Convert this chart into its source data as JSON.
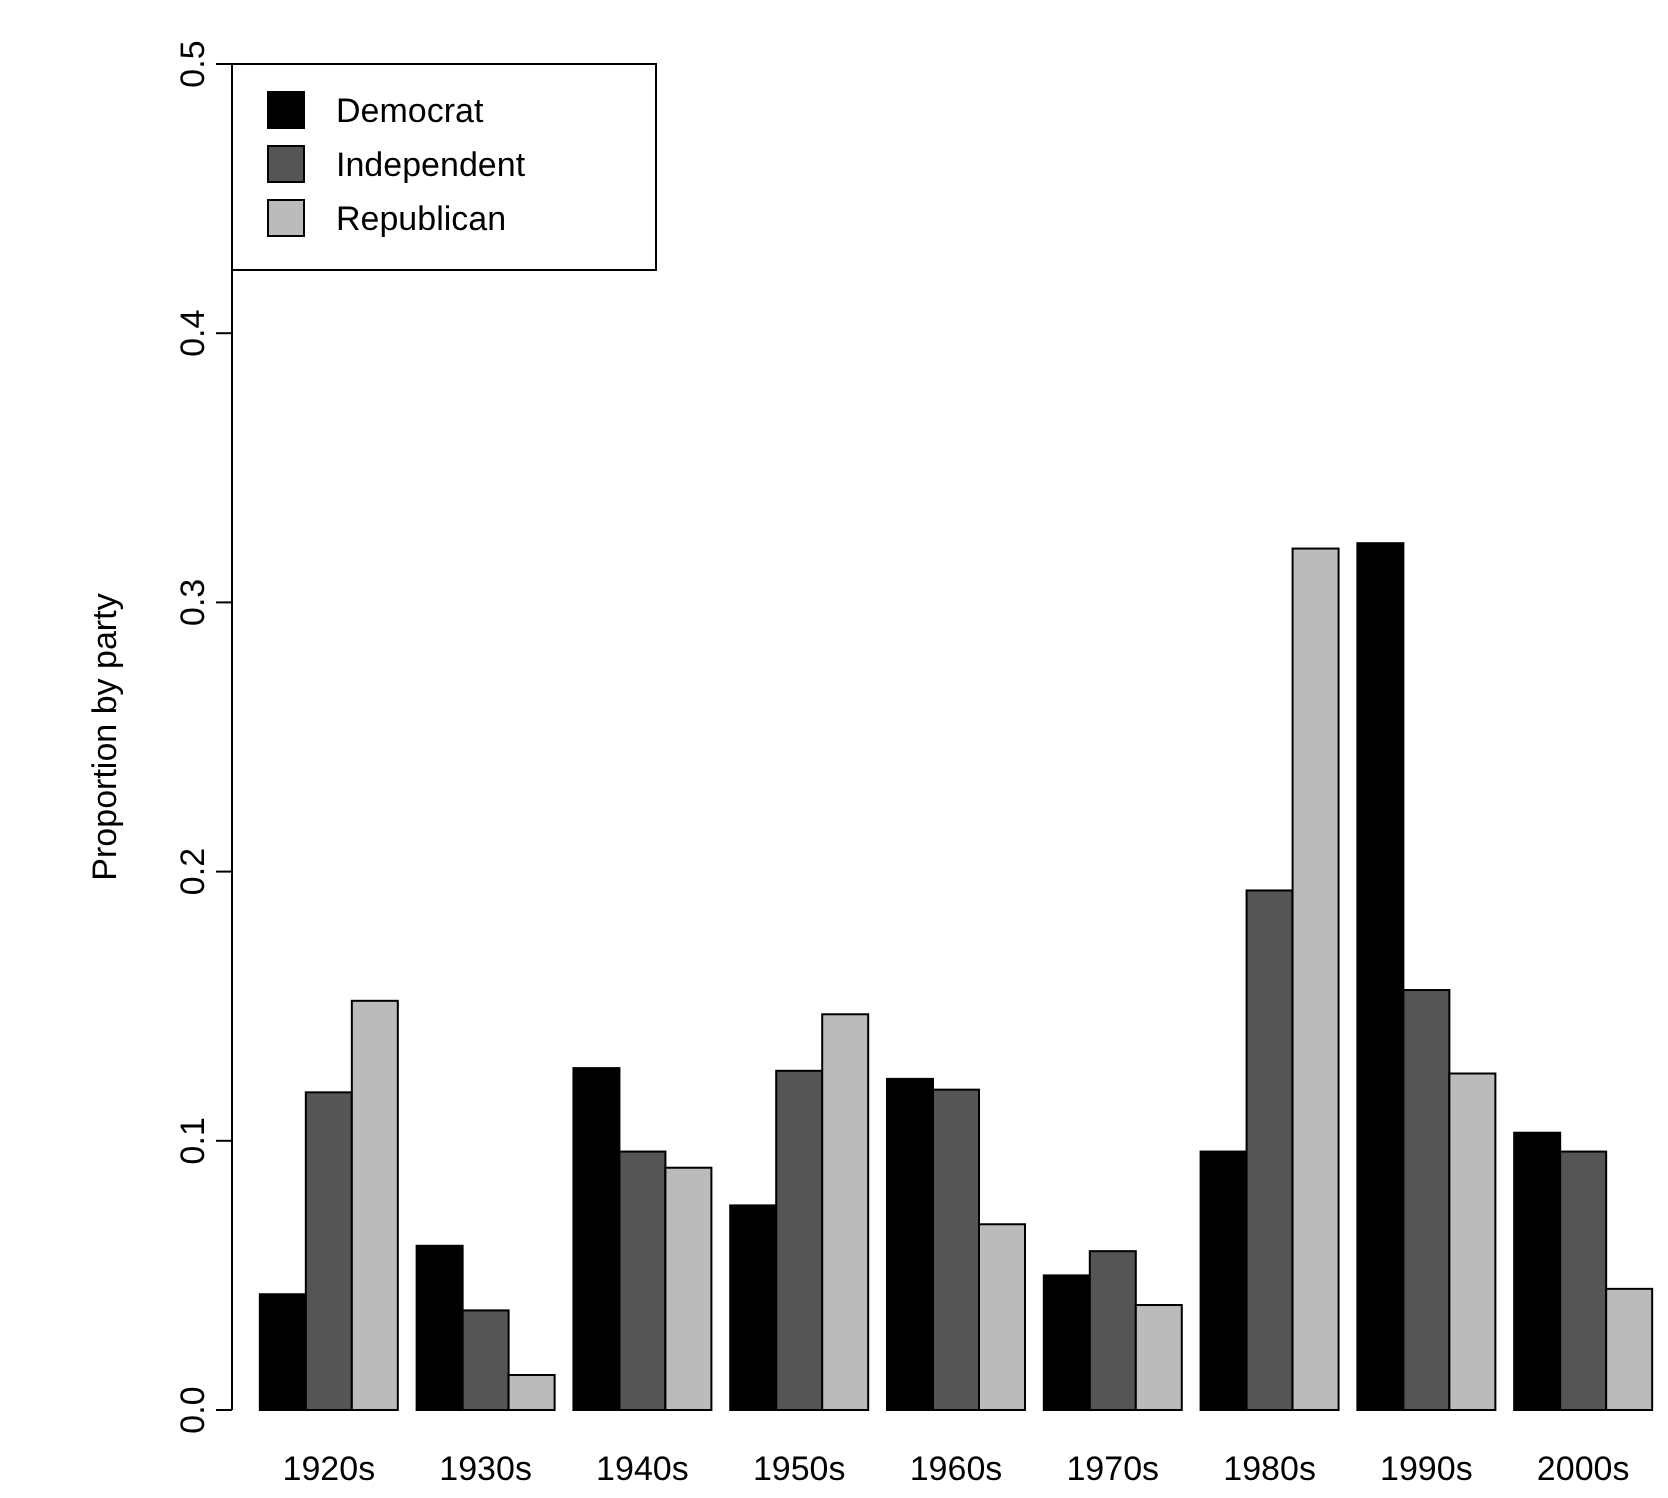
{
  "chart_data": {
    "type": "bar",
    "ylabel": "Proportion by party",
    "categories": [
      "1920s",
      "1930s",
      "1940s",
      "1950s",
      "1960s",
      "1970s",
      "1980s",
      "1990s",
      "2000s"
    ],
    "series": [
      {
        "name": "Democrat",
        "color": "#000000",
        "values": [
          0.043,
          0.061,
          0.127,
          0.076,
          0.123,
          0.05,
          0.096,
          0.322,
          0.103
        ]
      },
      {
        "name": "Independent",
        "color": "#555555",
        "values": [
          0.118,
          0.037,
          0.096,
          0.126,
          0.119,
          0.059,
          0.193,
          0.156,
          0.096
        ]
      },
      {
        "name": "Republican",
        "color": "#bbbbbb",
        "values": [
          0.152,
          0.013,
          0.09,
          0.147,
          0.069,
          0.039,
          0.32,
          0.125,
          0.045
        ]
      }
    ],
    "ylim": [
      0,
      0.5
    ],
    "yticks": [
      {
        "value": 0,
        "label": "0.0"
      },
      0.1,
      0.2,
      0.3,
      0.4,
      0.5
    ],
    "legend": "top left"
  }
}
